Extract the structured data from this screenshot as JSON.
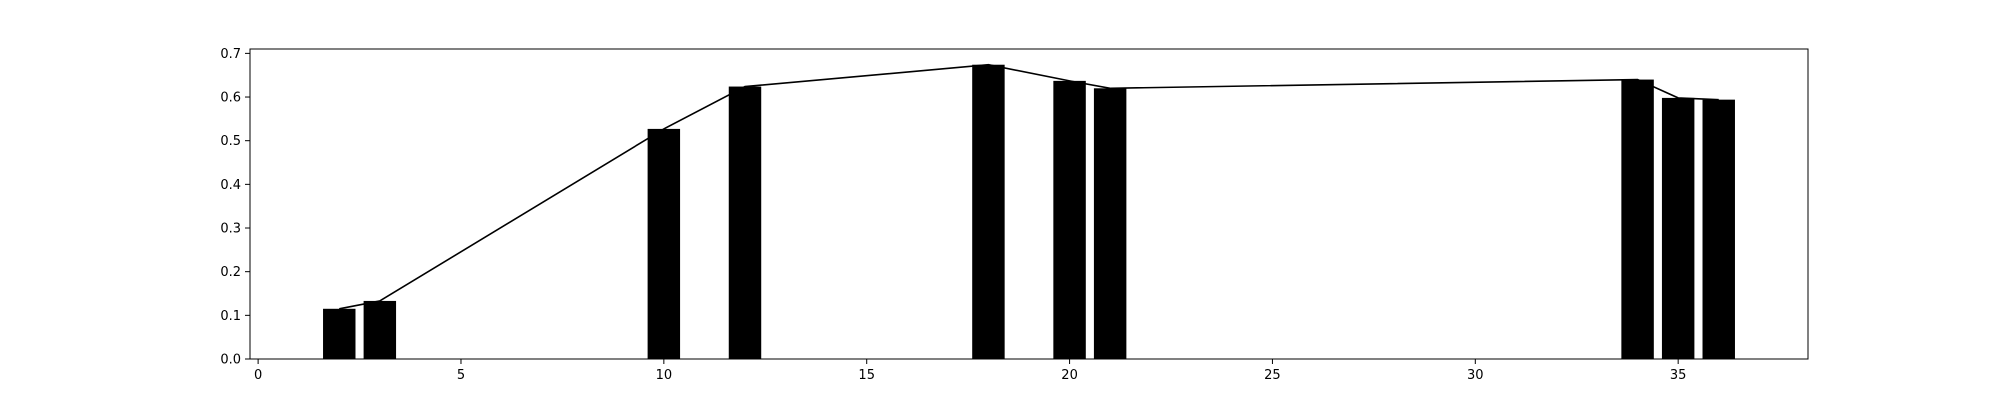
{
  "chart_data": {
    "type": "bar",
    "title": "",
    "xlabel": "",
    "ylabel": "",
    "xlim": [
      -0.2,
      38.2
    ],
    "ylim": [
      0.0,
      0.71
    ],
    "grid": false,
    "x_ticks": [
      0,
      5,
      10,
      15,
      20,
      25,
      30,
      35
    ],
    "y_ticks": [
      0.0,
      0.1,
      0.2,
      0.3,
      0.4,
      0.5,
      0.6,
      0.7
    ],
    "bar_width": 0.8,
    "bar_color": "#000000",
    "line_color": "#000000",
    "points": [
      {
        "x": 2,
        "y": 0.115
      },
      {
        "x": 3,
        "y": 0.133
      },
      {
        "x": 10,
        "y": 0.527
      },
      {
        "x": 12,
        "y": 0.624
      },
      {
        "x": 18,
        "y": 0.674
      },
      {
        "x": 20,
        "y": 0.637
      },
      {
        "x": 21,
        "y": 0.62
      },
      {
        "x": 34,
        "y": 0.64
      },
      {
        "x": 35,
        "y": 0.598
      },
      {
        "x": 36,
        "y": 0.594
      }
    ]
  }
}
